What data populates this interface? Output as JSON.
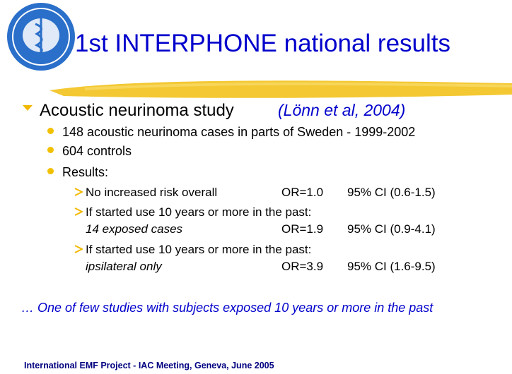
{
  "header": {
    "title": "1st INTERPHONE national results"
  },
  "main_bullet": {
    "text": "Acoustic neurinoma study",
    "citation": "(Lönn et al, 2004)"
  },
  "sub_bullets": [
    "148 acoustic neurinoma cases in parts of Sweden - 1999-2002",
    "604 controls",
    "Results:"
  ],
  "results": [
    {
      "text": "No increased risk overall",
      "or": "OR=1.0",
      "ci": "95% CI (0.6-1.5)"
    },
    {
      "text": "If started use 10 years or more in the past:",
      "detail": "14 exposed cases",
      "or": "OR=1.9",
      "ci": "95% CI (0.9-4.1)"
    },
    {
      "text": "If started use 10 years or more in the past:",
      "detail": "ipsilateral only",
      "or": "OR=3.9",
      "ci": "95% CI (1.6-9.5)"
    }
  ],
  "note": "… One of few studies with subjects exposed 10 years or more in the past",
  "footer": "International EMF Project - IAC Meeting, Geneva, June 2005"
}
